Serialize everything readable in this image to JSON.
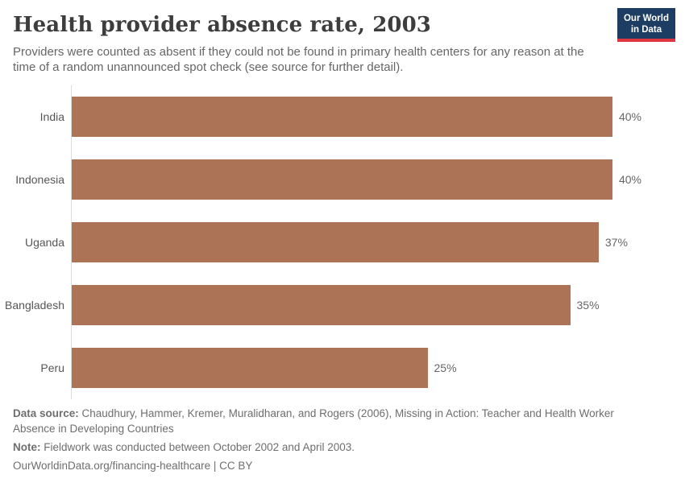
{
  "header": {
    "title": "Health provider absence rate, 2003",
    "subtitle": "Providers were counted as absent if they could not be found in primary health centers for any reason at the time of a random unannounced spot check (see source for further detail).",
    "logo": {
      "line1": "Our World",
      "line2": "in Data"
    }
  },
  "chart_data": {
    "type": "bar",
    "orientation": "horizontal",
    "title": "Health provider absence rate, 2003",
    "categories": [
      "India",
      "Indonesia",
      "Uganda",
      "Bangladesh",
      "Peru"
    ],
    "values": [
      40,
      40,
      37,
      35,
      25
    ],
    "value_labels": [
      "40%",
      "40%",
      "37%",
      "35%",
      "25%"
    ],
    "unit": "%",
    "xlabel": "",
    "ylabel": "",
    "xlim": [
      0,
      40
    ],
    "grid": false,
    "legend": "none",
    "bar_color": "#ad7356",
    "axis_line_color": "#dcdcdc"
  },
  "footer": {
    "data_source_label": "Data source:",
    "data_source_text": " Chaudhury, Hammer, Kremer, Muralidharan, and Rogers (2006), Missing in Action: Teacher and Health Worker Absence in Developing Countries",
    "note_label": "Note:",
    "note_text": " Fieldwork was conducted between October 2002 and April 2003.",
    "url": "OurWorldinData.org/financing-healthcare",
    "separator": " | ",
    "license": "CC BY"
  },
  "colors": {
    "bar": "#ad7356",
    "logo_background": "#1d3d63",
    "logo_accent": "#e0373f",
    "title_text": "#3d3d3d",
    "subtitle_text": "#666666"
  }
}
